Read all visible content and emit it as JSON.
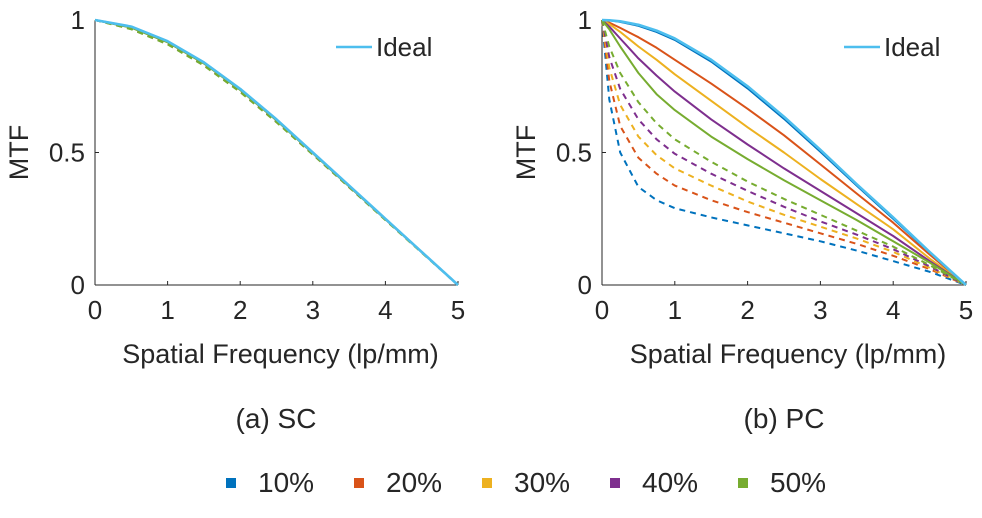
{
  "panel_labels": [
    "(a) SC",
    "(b) PC"
  ],
  "legend": {
    "items": [
      {
        "label": "10%",
        "color": "#0072BD"
      },
      {
        "label": "20%",
        "color": "#D95319"
      },
      {
        "label": "30%",
        "color": "#EDB120"
      },
      {
        "label": "40%",
        "color": "#7E2F8E"
      },
      {
        "label": "50%",
        "color": "#77AC30"
      }
    ]
  },
  "chart_data": [
    {
      "type": "line",
      "panel": "(a) SC",
      "xlabel": "Spatial Frequency (lp/mm)",
      "ylabel": "MTF",
      "xlim": [
        0,
        5
      ],
      "ylim": [
        0,
        1
      ],
      "xticks": [
        "0",
        "1",
        "2",
        "3",
        "4",
        "5"
      ],
      "yticks": [
        "0",
        "0.5",
        "1"
      ],
      "grid": false,
      "legend_position": "top-right",
      "x": [
        0,
        0.5,
        1,
        1.5,
        2,
        2.5,
        3,
        3.5,
        4,
        4.5,
        5
      ],
      "series": [
        {
          "name": "Ideal",
          "color": "#4DBEEE",
          "style": "solid",
          "values": [
            1,
            0.975,
            0.92,
            0.84,
            0.74,
            0.625,
            0.5,
            0.375,
            0.25,
            0.125,
            0
          ]
        },
        {
          "color": "#0072BD",
          "style": "solid",
          "values": [
            1,
            0.975,
            0.92,
            0.84,
            0.74,
            0.625,
            0.5,
            0.375,
            0.25,
            0.125,
            0
          ]
        },
        {
          "color": "#0072BD",
          "style": "dashed",
          "values": [
            1,
            0.97,
            0.915,
            0.835,
            0.735,
            0.62,
            0.497,
            0.372,
            0.248,
            0.124,
            0
          ]
        },
        {
          "color": "#D95319",
          "style": "solid",
          "values": [
            1,
            0.974,
            0.919,
            0.839,
            0.739,
            0.624,
            0.499,
            0.374,
            0.249,
            0.125,
            0
          ]
        },
        {
          "color": "#D95319",
          "style": "dashed",
          "values": [
            1,
            0.968,
            0.912,
            0.832,
            0.732,
            0.618,
            0.495,
            0.371,
            0.247,
            0.123,
            0
          ]
        },
        {
          "color": "#EDB120",
          "style": "solid",
          "values": [
            1,
            0.973,
            0.918,
            0.838,
            0.738,
            0.623,
            0.498,
            0.373,
            0.249,
            0.124,
            0
          ]
        },
        {
          "color": "#EDB120",
          "style": "dashed",
          "values": [
            1,
            0.967,
            0.91,
            0.83,
            0.73,
            0.616,
            0.494,
            0.37,
            0.246,
            0.123,
            0
          ]
        },
        {
          "color": "#7E2F8E",
          "style": "solid",
          "values": [
            1,
            0.972,
            0.917,
            0.837,
            0.737,
            0.622,
            0.498,
            0.373,
            0.248,
            0.124,
            0
          ]
        },
        {
          "color": "#7E2F8E",
          "style": "dashed",
          "values": [
            1,
            0.966,
            0.909,
            0.829,
            0.729,
            0.615,
            0.493,
            0.369,
            0.246,
            0.123,
            0
          ]
        },
        {
          "color": "#77AC30",
          "style": "solid",
          "values": [
            1,
            0.971,
            0.916,
            0.836,
            0.736,
            0.621,
            0.497,
            0.372,
            0.248,
            0.124,
            0
          ]
        },
        {
          "color": "#77AC30",
          "style": "dashed",
          "values": [
            1,
            0.965,
            0.908,
            0.828,
            0.728,
            0.614,
            0.492,
            0.369,
            0.245,
            0.122,
            0
          ]
        }
      ]
    },
    {
      "type": "line",
      "panel": "(b) PC",
      "xlabel": "Spatial Frequency (lp/mm)",
      "ylabel": "MTF",
      "xlim": [
        0,
        5
      ],
      "ylim": [
        0,
        1
      ],
      "xticks": [
        "0",
        "1",
        "2",
        "3",
        "4",
        "5"
      ],
      "yticks": [
        "0",
        "0.5",
        "1"
      ],
      "grid": false,
      "legend_position": "top-right",
      "x": [
        0,
        0.1,
        0.25,
        0.5,
        0.75,
        1,
        1.5,
        2,
        2.5,
        3,
        3.5,
        4,
        4.5,
        5
      ],
      "series": [
        {
          "name": "Ideal",
          "color": "#4DBEEE",
          "style": "solid",
          "values": [
            1,
            0.999,
            0.995,
            0.982,
            0.96,
            0.93,
            0.85,
            0.75,
            0.635,
            0.51,
            0.38,
            0.255,
            0.125,
            0
          ]
        },
        {
          "color": "#0072BD",
          "style": "solid",
          "values": [
            1,
            0.999,
            0.993,
            0.978,
            0.955,
            0.925,
            0.843,
            0.742,
            0.627,
            0.503,
            0.375,
            0.25,
            0.122,
            0
          ]
        },
        {
          "color": "#0072BD",
          "style": "dashed",
          "values": [
            1,
            0.7,
            0.5,
            0.37,
            0.32,
            0.29,
            0.255,
            0.225,
            0.195,
            0.165,
            0.13,
            0.09,
            0.05,
            0
          ]
        },
        {
          "color": "#D95319",
          "style": "solid",
          "values": [
            1,
            0.99,
            0.97,
            0.935,
            0.895,
            0.85,
            0.76,
            0.665,
            0.565,
            0.455,
            0.345,
            0.235,
            0.115,
            0
          ]
        },
        {
          "color": "#D95319",
          "style": "dashed",
          "values": [
            1,
            0.77,
            0.6,
            0.48,
            0.42,
            0.375,
            0.32,
            0.275,
            0.235,
            0.195,
            0.155,
            0.11,
            0.06,
            0
          ]
        },
        {
          "color": "#EDB120",
          "style": "solid",
          "values": [
            1,
            0.985,
            0.955,
            0.9,
            0.85,
            0.795,
            0.695,
            0.595,
            0.5,
            0.4,
            0.305,
            0.21,
            0.1,
            0
          ]
        },
        {
          "color": "#EDB120",
          "style": "dashed",
          "values": [
            1,
            0.82,
            0.68,
            0.56,
            0.49,
            0.44,
            0.375,
            0.315,
            0.265,
            0.22,
            0.175,
            0.125,
            0.065,
            0
          ]
        },
        {
          "color": "#7E2F8E",
          "style": "solid",
          "values": [
            1,
            0.975,
            0.93,
            0.855,
            0.79,
            0.73,
            0.625,
            0.53,
            0.44,
            0.355,
            0.27,
            0.185,
            0.09,
            0
          ]
        },
        {
          "color": "#7E2F8E",
          "style": "dashed",
          "values": [
            1,
            0.86,
            0.74,
            0.625,
            0.55,
            0.495,
            0.42,
            0.355,
            0.295,
            0.24,
            0.19,
            0.135,
            0.07,
            0
          ]
        },
        {
          "color": "#77AC30",
          "style": "solid",
          "values": [
            1,
            0.965,
            0.9,
            0.8,
            0.72,
            0.66,
            0.56,
            0.475,
            0.395,
            0.32,
            0.245,
            0.165,
            0.085,
            0
          ]
        },
        {
          "color": "#77AC30",
          "style": "dashed",
          "values": [
            1,
            0.9,
            0.8,
            0.69,
            0.61,
            0.55,
            0.465,
            0.39,
            0.325,
            0.265,
            0.205,
            0.145,
            0.075,
            0
          ]
        }
      ]
    }
  ]
}
